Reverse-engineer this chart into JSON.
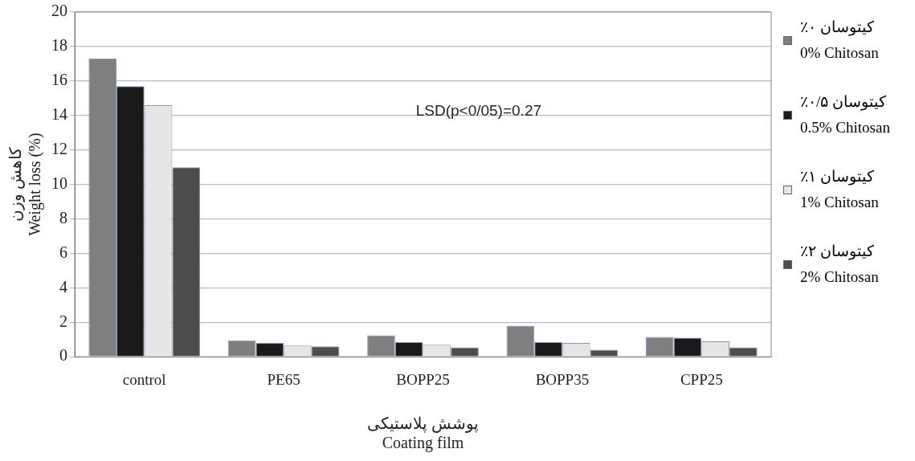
{
  "chart_data": {
    "type": "bar",
    "ylabel": "کاهش وزن\nWeight loss (%)",
    "xlabel": "پوشش پلاستیکی\nCoating film",
    "annotations": [
      "LSD(p<0/05)=0.27"
    ],
    "categories": [
      "control",
      "PE65",
      "BOPP25",
      "BOPP35",
      "CPP25"
    ],
    "series": [
      {
        "name": "کیتوسان ۰٪\n0% Chitosan",
        "color": "#7f7f7f",
        "values": [
          17.3,
          0.95,
          1.25,
          1.8,
          1.15
        ]
      },
      {
        "name": "کیتوسان ۰/۵٪\n0.5% Chitosan",
        "color": "#1a1a1a",
        "values": [
          15.7,
          0.8,
          0.85,
          0.85,
          1.1
        ]
      },
      {
        "name": "کیتوسان ۱٪\n1% Chitosan",
        "color": "#e6e6e6",
        "values": [
          14.6,
          0.65,
          0.7,
          0.8,
          0.9
        ]
      },
      {
        "name": "کیتوسان ۲٪\n2% Chitosan",
        "color": "#4d4d4d",
        "values": [
          11.0,
          0.6,
          0.55,
          0.4,
          0.55
        ]
      }
    ],
    "ylim": [
      0,
      20
    ],
    "yticks": [
      0,
      2,
      4,
      6,
      8,
      10,
      12,
      14,
      16,
      18,
      20
    ],
    "grid": "y",
    "legend": "right"
  }
}
